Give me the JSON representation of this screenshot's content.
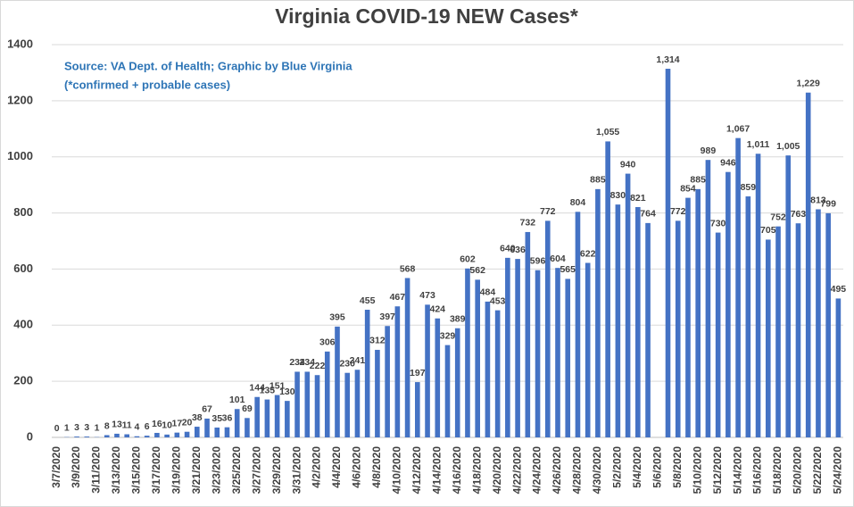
{
  "chart_data": {
    "type": "bar",
    "title": "Virginia COVID-19 NEW Cases*",
    "annotations": [
      "Source: VA Dept. of Health; Graphic by Blue Virginia",
      "(*confirmed + probable cases)"
    ],
    "color": "#4472c4",
    "categories": [
      "3/7/2020",
      null,
      "3/9/2020",
      null,
      "3/11/2020",
      null,
      "3/13/2020",
      null,
      "3/15/2020",
      null,
      "3/17/2020",
      null,
      "3/19/2020",
      null,
      "3/21/2020",
      null,
      "3/23/2020",
      null,
      "3/25/2020",
      null,
      "3/27/2020",
      null,
      "3/29/2020",
      null,
      "3/31/2020",
      null,
      "4/2/2020",
      null,
      "4/4/2020",
      null,
      "4/6/2020",
      null,
      "4/8/2020",
      null,
      "4/10/2020",
      null,
      "4/12/2020",
      null,
      "4/14/2020",
      null,
      "4/16/2020",
      null,
      "4/18/2020",
      null,
      "4/20/2020",
      null,
      "4/22/2020",
      null,
      "4/24/2020",
      null,
      "4/26/2020",
      null,
      "4/28/2020",
      null,
      "4/30/2020",
      null,
      "5/2/2020",
      null,
      "5/4/2020",
      null,
      "5/6/2020",
      null,
      "5/8/2020",
      null,
      "5/10/2020",
      null,
      "5/12/2020",
      null,
      "5/14/2020",
      null,
      "5/16/2020",
      null,
      "5/18/2020",
      null,
      "5/20/2020",
      null,
      "5/22/2020",
      null,
      "5/24/2020"
    ],
    "values": [
      0,
      1,
      3,
      3,
      1,
      8,
      13,
      11,
      4,
      6,
      16,
      10,
      17,
      20,
      38,
      67,
      35,
      36,
      101,
      69,
      144,
      135,
      151,
      130,
      234,
      234,
      222,
      306,
      395,
      230,
      241,
      455,
      312,
      397,
      467,
      568,
      197,
      473,
      424,
      329,
      389,
      602,
      562,
      484,
      453,
      640,
      636,
      732,
      596,
      772,
      604,
      565,
      804,
      622,
      885,
      1055,
      830,
      940,
      821,
      764,
      null,
      1314,
      772,
      854,
      885,
      989,
      730,
      946,
      1067,
      859,
      1011,
      705,
      752,
      1005,
      763,
      1229,
      813,
      799,
      495
    ],
    "value_labels": [
      "0",
      "1",
      "3",
      "3",
      "1",
      "8",
      "13",
      "11",
      "4",
      "6",
      "16",
      "10",
      "17",
      "20",
      "38",
      "67",
      "35",
      "36",
      "101",
      "69",
      "144",
      "135",
      "151",
      "130",
      "234",
      "234",
      "222",
      "306",
      "395",
      "230",
      "241",
      "455",
      "312",
      "397",
      "467",
      "568",
      "197",
      "473",
      "424",
      "329",
      "389",
      "602",
      "562",
      "484",
      "453",
      "640",
      "636",
      "732",
      "596",
      "772",
      "604",
      "565",
      "804",
      "622",
      "885",
      "1,055",
      "830",
      "940",
      "821",
      "764",
      null,
      "1,314",
      "772",
      "854",
      "885",
      "989",
      "730",
      "946",
      "1,067",
      "859",
      "1,011",
      "705",
      "752",
      "1,005",
      "763",
      "1,229",
      "813",
      "799",
      "495"
    ],
    "ylim": [
      0,
      1400
    ],
    "yticks": [
      0,
      200,
      400,
      600,
      800,
      1000,
      1200,
      1400
    ],
    "grid": true
  }
}
